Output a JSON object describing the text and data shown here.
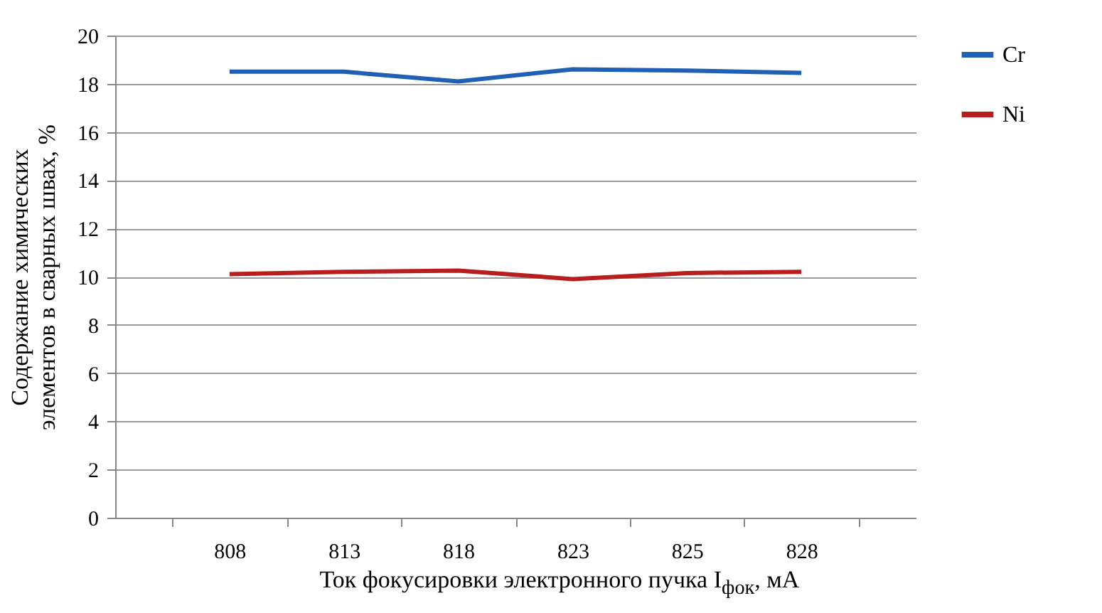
{
  "chart_data": {
    "type": "line",
    "categories": [
      "808",
      "813",
      "818",
      "823",
      "825",
      "828"
    ],
    "series": [
      {
        "name": "Cr",
        "color": "#1f5fb4",
        "values": [
          18.5,
          18.5,
          18.1,
          18.6,
          18.55,
          18.45
        ]
      },
      {
        "name": "Ni",
        "color": "#b81e1e",
        "values": [
          10.1,
          10.2,
          10.25,
          9.9,
          10.15,
          10.2
        ]
      }
    ],
    "xlabel": "Ток фокусировки электронного пучка I$_{фок}$, мА",
    "ylabel": "Содержание химических\nэлементов в сварных швах, %",
    "ylim": [
      0,
      20
    ],
    "yticks": [
      0,
      2,
      4,
      6,
      8,
      10,
      12,
      14,
      16,
      18,
      20
    ],
    "grid": "y",
    "legend": "right",
    "marker": "none",
    "line_style": "solid"
  }
}
